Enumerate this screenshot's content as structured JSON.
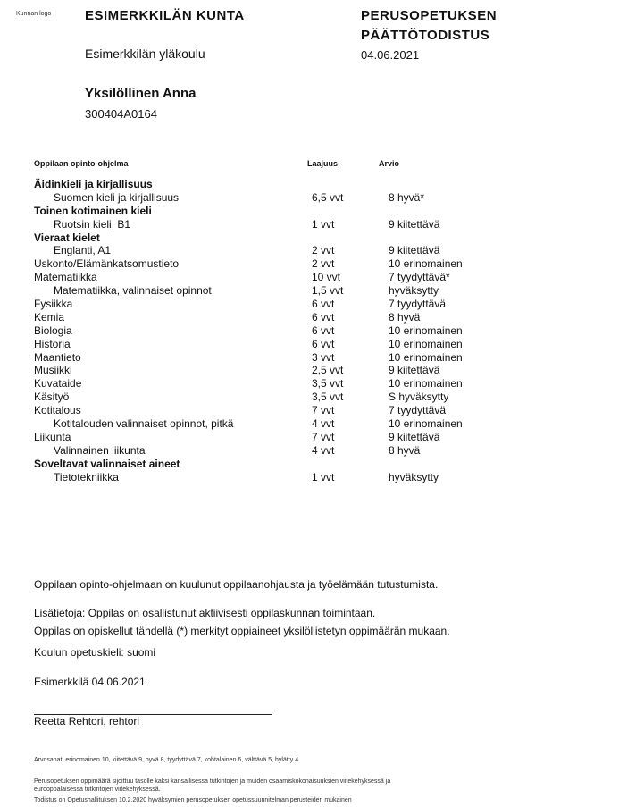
{
  "header": {
    "logo_text": "Kunnan logo",
    "municipality": "ESIMERKKILÄN KUNTA",
    "school": "Esimerkkilän yläkoulu",
    "doc_title_line1": "PERUSOPETUKSEN",
    "doc_title_line2": "PÄÄTTÖTODISTUS",
    "date": "04.06.2021"
  },
  "student": {
    "name": "Yksilöllinen Anna",
    "id": "300404A0164"
  },
  "table": {
    "col_subject": "Oppilaan opinto-ohjelma",
    "col_scope": "Laajuus",
    "col_grade": "Arvio",
    "rows": [
      {
        "type": "group",
        "name": "Äidinkieli ja kirjallisuus",
        "scope": "",
        "grade": ""
      },
      {
        "type": "indent",
        "name": "Suomen kieli ja kirjallisuus",
        "scope": "6,5 vvt",
        "grade": "8 hyvä*"
      },
      {
        "type": "group",
        "name": "Toinen kotimainen kieli",
        "scope": "",
        "grade": ""
      },
      {
        "type": "indent",
        "name": "Ruotsin kieli, B1",
        "scope": "1 vvt",
        "grade": "9 kiitettävä"
      },
      {
        "type": "group",
        "name": "Vieraat kielet",
        "scope": "",
        "grade": ""
      },
      {
        "type": "indent",
        "name": "Englanti, A1",
        "scope": "2 vvt",
        "grade": "9 kiitettävä"
      },
      {
        "type": "subject",
        "name": "Uskonto/Elämänkatsomustieto",
        "scope": "2 vvt",
        "grade": "10 erinomainen"
      },
      {
        "type": "subject",
        "name": "Matematiikka",
        "scope": "10 vvt",
        "grade": "7 tyydyttävä*"
      },
      {
        "type": "indent",
        "name": "Matematiikka, valinnaiset opinnot",
        "scope": "1,5 vvt",
        "grade": "hyväksytty"
      },
      {
        "type": "subject",
        "name": "Fysiikka",
        "scope": "6 vvt",
        "grade": "7 tyydyttävä"
      },
      {
        "type": "subject",
        "name": "Kemia",
        "scope": "6 vvt",
        "grade": "8 hyvä"
      },
      {
        "type": "subject",
        "name": "Biologia",
        "scope": "6 vvt",
        "grade": "10 erinomainen"
      },
      {
        "type": "subject",
        "name": "Historia",
        "scope": "6 vvt",
        "grade": "10 erinomainen"
      },
      {
        "type": "subject",
        "name": "Maantieto",
        "scope": "3 vvt",
        "grade": "10 erinomainen"
      },
      {
        "type": "subject",
        "name": "Musiikki",
        "scope": "2,5 vvt",
        "grade": "9 kiitettävä"
      },
      {
        "type": "subject",
        "name": "Kuvataide",
        "scope": "3,5 vvt",
        "grade": "10 erinomainen"
      },
      {
        "type": "subject",
        "name": "Käsityö",
        "scope": "3,5 vvt",
        "grade": "S hyväksytty"
      },
      {
        "type": "subject",
        "name": "Kotitalous",
        "scope": "7 vvt",
        "grade": "7 tyydyttävä"
      },
      {
        "type": "indent",
        "name": "Kotitalouden valinnaiset opinnot, pitkä",
        "scope": "4 vvt",
        "grade": "10 erinomainen"
      },
      {
        "type": "subject",
        "name": "Liikunta",
        "scope": "7 vvt",
        "grade": "9 kiitettävä"
      },
      {
        "type": "indent",
        "name": "Valinnainen liikunta",
        "scope": "4 vvt",
        "grade": "8 hyvä"
      },
      {
        "type": "group",
        "name": "Soveltavat valinnaiset aineet",
        "scope": "",
        "grade": ""
      },
      {
        "type": "indent",
        "name": "Tietotekniikka",
        "scope": "1 vvt",
        "grade": "hyväksytty"
      }
    ]
  },
  "notes": {
    "guidance": "Oppilaan opinto-ohjelmaan on kuulunut oppilaanohjausta ja työelämään tutustumista.",
    "extra": "Lisätietoja: Oppilas on osallistunut aktiivisesti oppilaskunnan toimintaan.",
    "individual": "Oppilas on opiskellut tähdellä (*) merkityt oppiaineet yksilöllistetyn oppimäärän mukaan.",
    "language": "Koulun opetuskieli: suomi",
    "place_date": "Esimerkkilä 04.06.2021",
    "signer": "Reetta Rehtori, rehtori"
  },
  "footer": {
    "grades": "Arvosanat: erinomainen 10, kiitettävä 9, hyvä 8, tyydyttävä 7, kohtalainen 6, välttävä 5,  hylätty  4",
    "level_line1": "Perusopetuksen oppimäärä sijoittuu tasolle kaksi kansallisessa tutkintojen ja muiden osaamiskokonaisuuksien viitekehyksessä ja",
    "level_line2": "eurooppalaisessa tutkintojen viitekehyksessä.",
    "curriculum": "Todistus on Opetushallituksen 10.2.2020 hyväksymien perusopetuksen opetussuunnitelman perusteiden mukainen"
  }
}
